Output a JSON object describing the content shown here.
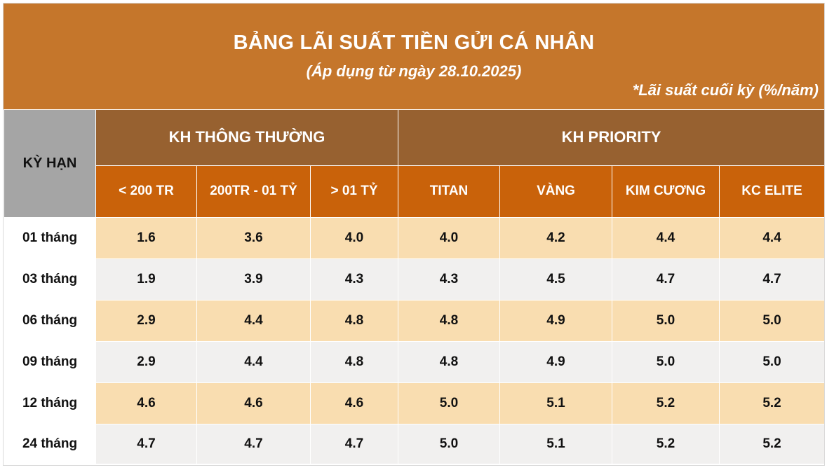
{
  "banner": {
    "title": "BẢNG LÃI SUẤT TIỀN GỬI CÁ NHÂN",
    "subtitle": "(Áp dụng từ ngày 28.10.2025)",
    "note": "*Lãi suất cuối kỳ (%/năm)"
  },
  "table": {
    "term_header": "KỲ HẠN",
    "groups": [
      "KH THÔNG THƯỜNG",
      "KH PRIORITY"
    ],
    "columns": [
      "< 200 TR",
      "200TR - 01 TỶ",
      "> 01 TỶ",
      "TITAN",
      "VÀNG",
      "KIM CƯƠNG",
      "KC ELITE"
    ],
    "rows": [
      {
        "term": "01 tháng",
        "values": [
          "1.6",
          "3.6",
          "4.0",
          "4.0",
          "4.2",
          "4.4",
          "4.4"
        ]
      },
      {
        "term": "03 tháng",
        "values": [
          "1.9",
          "3.9",
          "4.3",
          "4.3",
          "4.5",
          "4.7",
          "4.7"
        ]
      },
      {
        "term": "06 tháng",
        "values": [
          "2.9",
          "4.4",
          "4.8",
          "4.8",
          "4.9",
          "5.0",
          "5.0"
        ]
      },
      {
        "term": "09 tháng",
        "values": [
          "2.9",
          "4.4",
          "4.8",
          "4.8",
          "4.9",
          "5.0",
          "5.0"
        ]
      },
      {
        "term": "12 tháng",
        "values": [
          "4.6",
          "4.6",
          "4.6",
          "5.0",
          "5.1",
          "5.2",
          "5.2"
        ]
      },
      {
        "term": "24 tháng",
        "values": [
          "4.7",
          "4.7",
          "4.7",
          "5.0",
          "5.1",
          "5.2",
          "5.2"
        ]
      }
    ]
  },
  "colors": {
    "banner": "#c5762b",
    "group_header": "#976130",
    "sub_header": "#c9620a",
    "term_header": "#a5a5a5",
    "row_odd": "#f9ddb0",
    "row_even": "#f1f0ef"
  }
}
